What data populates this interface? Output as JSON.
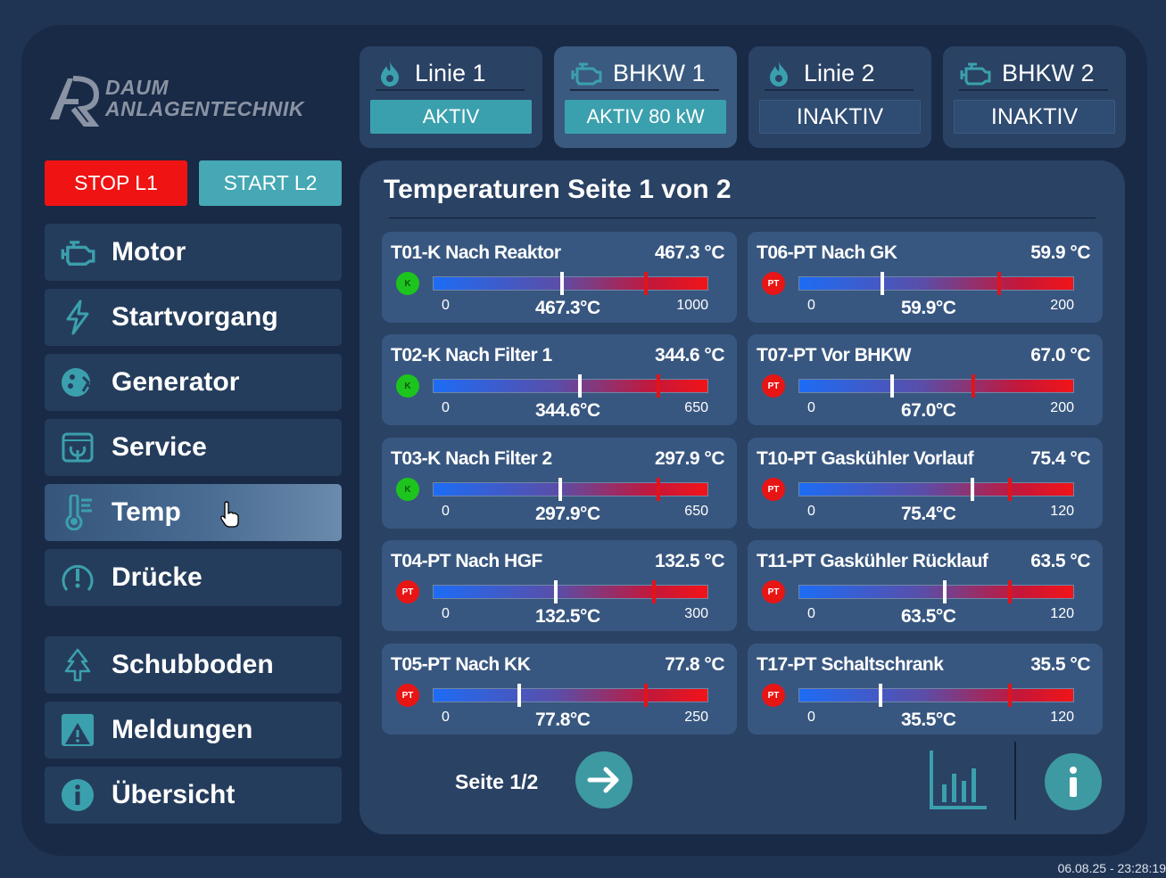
{
  "brand": {
    "line1": "DAUM",
    "line2": "ANLAGENTECHNIK"
  },
  "tiles": [
    {
      "title": "Linie 1",
      "status": "AKTIV",
      "icon": "flame-icon",
      "state": "on"
    },
    {
      "title": "BHKW 1",
      "status": "AKTIV  80 kW",
      "icon": "engine-icon",
      "state": "on"
    },
    {
      "title": "Linie 2",
      "status": "INAKTIV",
      "icon": "flame-icon",
      "state": "off"
    },
    {
      "title": "BHKW 2",
      "status": "INAKTIV",
      "icon": "engine-icon",
      "state": "off"
    }
  ],
  "controls": {
    "stop": "STOP L1",
    "start": "START L2"
  },
  "nav": [
    {
      "label": "Motor",
      "icon": "engine-icon"
    },
    {
      "label": "Startvorgang",
      "icon": "lightning-icon"
    },
    {
      "label": "Generator",
      "icon": "generator-icon"
    },
    {
      "label": "Service",
      "icon": "service-icon"
    },
    {
      "label": "Temp",
      "icon": "thermometer-icon",
      "selected": true
    },
    {
      "label": "Drücke",
      "icon": "pressure-icon"
    },
    {
      "label": "Schubboden",
      "icon": "tree-icon"
    },
    {
      "label": "Meldungen",
      "icon": "warning-icon"
    },
    {
      "label": "Übersicht",
      "icon": "info-icon"
    }
  ],
  "panel": {
    "title": "Temperaturen Seite 1 von 2",
    "page_label": "Seite 1/2"
  },
  "sensors": [
    {
      "name": "T01-K Nach Reaktor",
      "value": "467.3 °C",
      "current": "467.3°C",
      "type": "K",
      "min": "0",
      "max": "1000",
      "fraction": 0.4673,
      "limit_fraction": 0.77
    },
    {
      "name": "T02-K Nach Filter 1",
      "value": "344.6 °C",
      "current": "344.6°C",
      "type": "K",
      "min": "0",
      "max": "650",
      "fraction": 0.53,
      "limit_fraction": 0.815
    },
    {
      "name": "T03-K Nach Filter 2",
      "value": "297.9 °C",
      "current": "297.9°C",
      "type": "K",
      "min": "0",
      "max": "650",
      "fraction": 0.458,
      "limit_fraction": 0.815
    },
    {
      "name": "T04-PT Nach HGF",
      "value": "132.5 °C",
      "current": "132.5°C",
      "type": "PT",
      "min": "0",
      "max": "300",
      "fraction": 0.442,
      "limit_fraction": 0.8
    },
    {
      "name": "T05-PT Nach KK",
      "value": "77.8 °C",
      "current": "77.8°C",
      "type": "PT",
      "min": "0",
      "max": "250",
      "fraction": 0.311,
      "limit_fraction": 0.77
    },
    {
      "name": "T06-PT Nach GK",
      "value": "59.9 °C",
      "current": "59.9°C",
      "type": "PT",
      "min": "0",
      "max": "200",
      "fraction": 0.2995,
      "limit_fraction": 0.725
    },
    {
      "name": "T07-PT Vor BHKW",
      "value": "67.0 °C",
      "current": "67.0°C",
      "type": "PT",
      "min": "0",
      "max": "200",
      "fraction": 0.335,
      "limit_fraction": 0.63
    },
    {
      "name": "T10-PT Gaskühler Vorlauf",
      "value": "75.4 °C",
      "current": "75.4°C",
      "type": "PT",
      "min": "0",
      "max": "120",
      "fraction": 0.628,
      "limit_fraction": 0.765
    },
    {
      "name": "T11-PT Gaskühler Rücklauf",
      "value": "63.5 °C",
      "current": "63.5°C",
      "type": "PT",
      "min": "0",
      "max": "120",
      "fraction": 0.529,
      "limit_fraction": 0.765
    },
    {
      "name": "T17-PT Schaltschrank",
      "value": "35.5 °C",
      "current": "35.5°C",
      "type": "PT",
      "min": "0",
      "max": "120",
      "fraction": 0.296,
      "limit_fraction": 0.765
    }
  ],
  "timestamp": "06.08.25 - 23:28:19",
  "colors": {
    "accent": "#3ba0ad",
    "stop": "#ef1313",
    "panel": "#2a4264",
    "card": "#385780"
  }
}
